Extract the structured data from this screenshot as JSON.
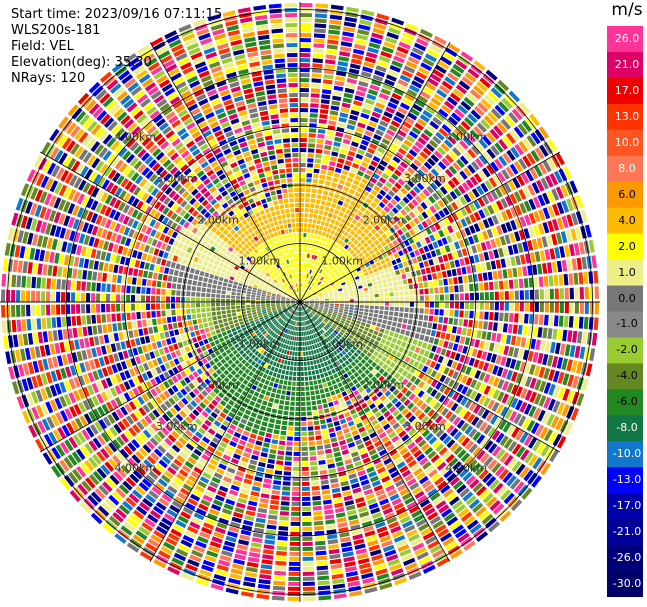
{
  "header": {
    "start_time": "Start time: 2023/09/16 07:11:15",
    "instrument": "WLS200s-181",
    "field": "Field: VEL",
    "elevation": "Elevation(deg): 35.30",
    "nrays": "NRays: 120"
  },
  "colorbar": {
    "unit": "m/s",
    "ticks": [
      "26.0",
      "21.0",
      "17.0",
      "13.0",
      "10.0",
      "8.0",
      "6.0",
      "4.0",
      "2.0",
      "1.0",
      "0.0",
      "-1.0",
      "-2.0",
      "-4.0",
      "-6.0",
      "-8.0",
      "-10.0",
      "-13.0",
      "-17.0",
      "-21.0",
      "-26.0",
      "-30.0"
    ],
    "colors": [
      "#ff3399",
      "#dd0066",
      "#ee0000",
      "#ff3300",
      "#ff5522",
      "#ff7755",
      "#ff9900",
      "#ffbb00",
      "#ffff00",
      "#eeee88",
      "#777777",
      "#888888",
      "#99cc33",
      "#668822",
      "#228822",
      "#117744",
      "#1177cc",
      "#0000ff",
      "#0000aa",
      "#000099",
      "#000077",
      "#000066"
    ]
  },
  "range_labels": [
    "1.00km",
    "2.00km",
    "3.00km",
    "4.00km"
  ]
}
